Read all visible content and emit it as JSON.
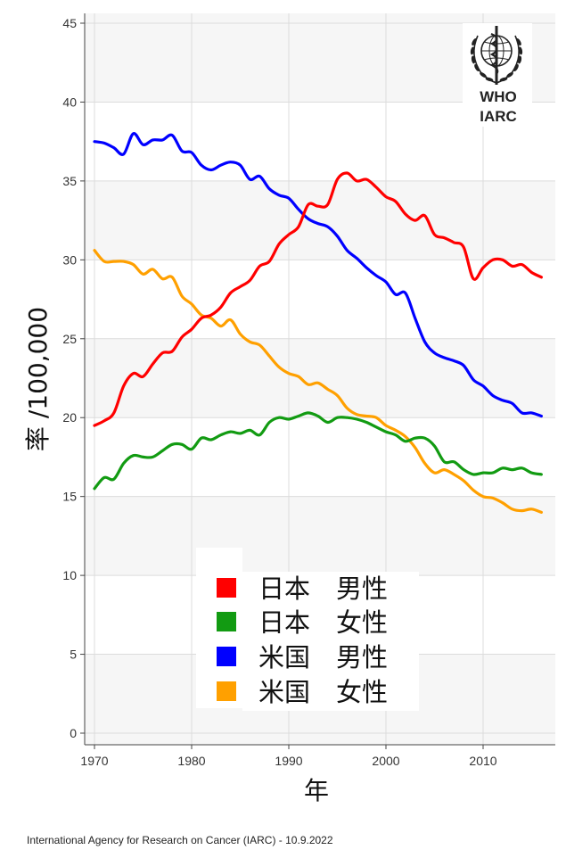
{
  "chart_data": {
    "type": "line",
    "xlabel": "年",
    "ylabel": "率 /100,000",
    "xlim": [
      1970,
      2016
    ],
    "ylim": [
      0,
      45
    ],
    "xticks": [
      1970,
      1980,
      1990,
      2000,
      2010
    ],
    "yticks": [
      0,
      5,
      10,
      15,
      20,
      25,
      30,
      35,
      40,
      45
    ],
    "grid": true,
    "legend": "bottom-center",
    "x": [
      1970,
      1971,
      1972,
      1973,
      1974,
      1975,
      1976,
      1977,
      1978,
      1979,
      1980,
      1981,
      1982,
      1983,
      1984,
      1985,
      1986,
      1987,
      1988,
      1989,
      1990,
      1991,
      1992,
      1993,
      1994,
      1995,
      1996,
      1997,
      1998,
      1999,
      2000,
      2001,
      2002,
      2003,
      2004,
      2005,
      2006,
      2007,
      2008,
      2009,
      2010,
      2011,
      2012,
      2013,
      2014,
      2015,
      2016
    ],
    "series": [
      {
        "name": "日本　男性",
        "color": "#ff0000",
        "values": [
          19.5,
          19.8,
          20.3,
          22.0,
          22.8,
          22.6,
          23.4,
          24.1,
          24.2,
          25.1,
          25.6,
          26.3,
          26.5,
          27.0,
          27.9,
          28.3,
          28.7,
          29.6,
          29.9,
          31.0,
          31.6,
          32.1,
          33.5,
          33.4,
          33.5,
          35.1,
          35.5,
          35.0,
          35.1,
          34.6,
          34.0,
          33.7,
          32.9,
          32.5,
          32.8,
          31.6,
          31.4,
          31.1,
          30.8,
          28.8,
          29.5,
          30.0,
          30.0,
          29.6,
          29.7,
          29.2,
          28.9
        ]
      },
      {
        "name": "日本　女性",
        "color": "#129b12",
        "values": [
          15.5,
          16.2,
          16.1,
          17.1,
          17.6,
          17.5,
          17.5,
          17.9,
          18.3,
          18.3,
          18.0,
          18.7,
          18.6,
          18.9,
          19.1,
          19.0,
          19.2,
          18.9,
          19.7,
          20.0,
          19.9,
          20.1,
          20.3,
          20.1,
          19.7,
          20.0,
          20.0,
          19.9,
          19.7,
          19.4,
          19.1,
          18.9,
          18.5,
          18.7,
          18.7,
          18.2,
          17.2,
          17.2,
          16.7,
          16.4,
          16.5,
          16.5,
          16.8,
          16.7,
          16.8,
          16.5,
          16.4
        ]
      },
      {
        "name": "米国　男性",
        "color": "#0000ff",
        "values": [
          37.5,
          37.4,
          37.1,
          36.7,
          38.0,
          37.3,
          37.6,
          37.6,
          37.9,
          36.9,
          36.8,
          36.0,
          35.7,
          36.0,
          36.2,
          36.0,
          35.1,
          35.3,
          34.5,
          34.1,
          33.9,
          33.2,
          32.6,
          32.3,
          32.1,
          31.5,
          30.6,
          30.1,
          29.5,
          29.0,
          28.6,
          27.8,
          27.9,
          26.3,
          24.8,
          24.1,
          23.8,
          23.6,
          23.3,
          22.4,
          22.0,
          21.4,
          21.1,
          20.9,
          20.3,
          20.3,
          20.1
        ]
      },
      {
        "name": "米国　女性",
        "color": "#ffa000",
        "values": [
          30.6,
          29.9,
          29.9,
          29.9,
          29.7,
          29.1,
          29.4,
          28.8,
          28.9,
          27.7,
          27.2,
          26.5,
          26.3,
          25.8,
          26.2,
          25.3,
          24.8,
          24.6,
          23.9,
          23.2,
          22.8,
          22.6,
          22.1,
          22.2,
          21.8,
          21.4,
          20.6,
          20.2,
          20.1,
          20.0,
          19.5,
          19.2,
          18.8,
          18.1,
          17.1,
          16.5,
          16.7,
          16.4,
          16.0,
          15.4,
          15.0,
          14.9,
          14.6,
          14.2,
          14.1,
          14.2,
          14.0
        ]
      }
    ]
  },
  "logo": {
    "icon": "who-emblem-icon",
    "line1": "WHO",
    "line2": "IARC"
  },
  "footer": {
    "credit": "International Agency for Research on Cancer (IARC) - 10.9.2022"
  }
}
